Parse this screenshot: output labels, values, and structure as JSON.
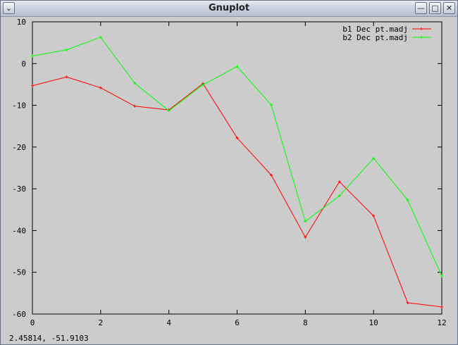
{
  "window": {
    "title": "Gnuplot",
    "menu_icon": "chevron-down-icon",
    "minimize_icon": "minimize-icon",
    "maximize_icon": "maximize-icon",
    "close_icon": "close-icon"
  },
  "status": {
    "coordinates": "2.45814, -51.9103"
  },
  "chart_data": {
    "type": "line",
    "title": "",
    "xlabel": "",
    "ylabel": "",
    "xlim": [
      0,
      12
    ],
    "ylim": [
      -60,
      10
    ],
    "xticks": [
      0,
      2,
      4,
      6,
      8,
      10,
      12
    ],
    "yticks": [
      10,
      0,
      -10,
      -20,
      -30,
      -40,
      -50,
      -60
    ],
    "grid": false,
    "legend_position": "top-right",
    "background": "#cccccc",
    "series": [
      {
        "name": "b1 Dec pt.madj",
        "color": "#ff0000",
        "x": [
          0,
          1,
          2,
          3,
          4,
          5,
          6,
          7,
          8,
          9,
          10,
          11,
          12
        ],
        "y": [
          -5.3,
          -3.2,
          -5.8,
          -10.2,
          -11.1,
          -4.8,
          -17.8,
          -26.7,
          -41.6,
          -28.3,
          -36.5,
          -57.3,
          -58.3
        ]
      },
      {
        "name": "b2 Dec pt.madj",
        "color": "#00ff00",
        "x": [
          0,
          1,
          2,
          3,
          4,
          5,
          6,
          7,
          8,
          9,
          10,
          11,
          12
        ],
        "y": [
          1.8,
          3.3,
          6.3,
          -4.7,
          -11.3,
          -5.1,
          -0.7,
          -9.9,
          -37.8,
          -31.7,
          -22.7,
          -32.7,
          -50.9
        ]
      }
    ]
  }
}
